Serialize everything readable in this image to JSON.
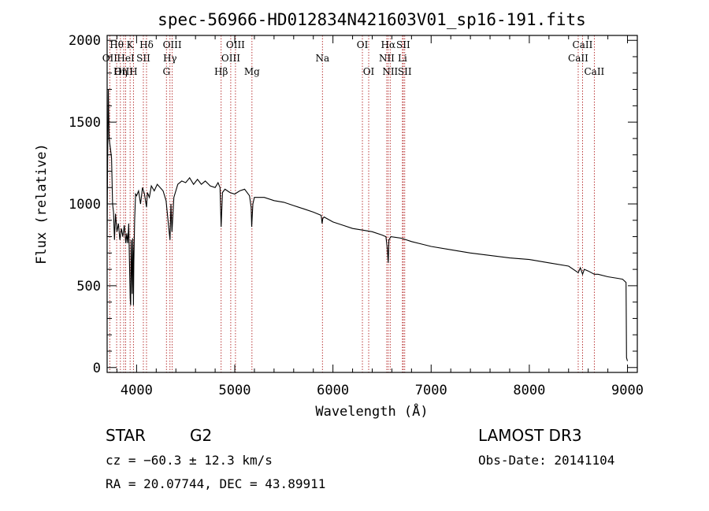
{
  "chart_data": {
    "type": "line",
    "title": "spec-56966-HD012834N421603V01_sp16-191.fits",
    "xlabel": "Wavelength (Å)",
    "ylabel": "Flux (relative)",
    "xlim": [
      3700,
      9100
    ],
    "ylim": [
      -30,
      2030
    ],
    "xticks": [
      4000,
      5000,
      6000,
      7000,
      8000,
      9000
    ],
    "yticks": [
      0,
      500,
      1000,
      1500,
      2000
    ],
    "grid": false,
    "series": [
      {
        "name": "flux",
        "x": [
          3700,
          3705,
          3712,
          3720,
          3735,
          3745,
          3755,
          3765,
          3775,
          3785,
          3800,
          3815,
          3830,
          3845,
          3860,
          3875,
          3890,
          3900,
          3910,
          3920,
          3930,
          3935,
          3940,
          3945,
          3950,
          3955,
          3960,
          3965,
          3968,
          3972,
          3980,
          3990,
          4000,
          4020,
          4040,
          4060,
          4080,
          4101,
          4110,
          4130,
          4150,
          4180,
          4210,
          4240,
          4270,
          4300,
          4320,
          4340,
          4350,
          4360,
          4380,
          4420,
          4460,
          4500,
          4540,
          4580,
          4620,
          4660,
          4700,
          4750,
          4800,
          4830,
          4850,
          4861,
          4875,
          4900,
          4950,
          5000,
          5050,
          5100,
          5150,
          5167,
          5172,
          5184,
          5200,
          5300,
          5400,
          5500,
          5600,
          5700,
          5800,
          5880,
          5890,
          5896,
          5910,
          6000,
          6100,
          6200,
          6300,
          6400,
          6500,
          6540,
          6555,
          6563,
          6570,
          6590,
          6700,
          6800,
          6900,
          7000,
          7200,
          7400,
          7600,
          7800,
          8000,
          8200,
          8400,
          8498,
          8520,
          8542,
          8560,
          8600,
          8662,
          8700,
          8800,
          8900,
          8950,
          8985,
          8990,
          9000
        ],
        "values": [
          800,
          1250,
          1700,
          1400,
          1330,
          1280,
          1000,
          950,
          780,
          940,
          830,
          880,
          780,
          850,
          800,
          870,
          760,
          820,
          760,
          880,
          560,
          420,
          380,
          780,
          600,
          450,
          790,
          700,
          380,
          640,
          900,
          1060,
          1050,
          1080,
          1000,
          1100,
          1060,
          980,
          1070,
          1040,
          1110,
          1080,
          1120,
          1100,
          1080,
          1020,
          900,
          780,
          1000,
          830,
          1040,
          1120,
          1140,
          1130,
          1160,
          1120,
          1150,
          1120,
          1140,
          1110,
          1100,
          1130,
          1100,
          860,
          1070,
          1090,
          1070,
          1060,
          1080,
          1090,
          1050,
          980,
          860,
          1000,
          1040,
          1040,
          1020,
          1010,
          990,
          970,
          950,
          930,
          880,
          910,
          920,
          890,
          870,
          850,
          840,
          830,
          810,
          800,
          720,
          640,
          780,
          800,
          790,
          770,
          755,
          740,
          720,
          700,
          685,
          670,
          660,
          640,
          620,
          580,
          610,
          570,
          600,
          590,
          570,
          570,
          555,
          545,
          540,
          520,
          60,
          40
        ]
      }
    ],
    "lines": [
      {
        "name": "OII",
        "wavelength": 3727,
        "tier": 1
      },
      {
        "name": "Hθ",
        "wavelength": 3797,
        "tier": 0
      },
      {
        "name": "OIII",
        "wavelength": 3869,
        "tier": 2
      },
      {
        "name": "HeI",
        "wavelength": 3889,
        "tier": 1
      },
      {
        "name": "K",
        "wavelength": 3934,
        "tier": 0
      },
      {
        "name": "Hη",
        "wavelength": 3835,
        "tier": 2
      },
      {
        "name": "H",
        "wavelength": 3968,
        "tier": 2
      },
      {
        "name": "SII",
        "wavelength": 4069,
        "tier": 1
      },
      {
        "name": "Hδ",
        "wavelength": 4101,
        "tier": 0
      },
      {
        "name": "G",
        "wavelength": 4304,
        "tier": 2
      },
      {
        "name": "Hγ",
        "wavelength": 4340,
        "tier": 1
      },
      {
        "name": "OIII",
        "wavelength": 4363,
        "tier": 0
      },
      {
        "name": "Hβ",
        "wavelength": 4861,
        "tier": 2
      },
      {
        "name": "OIII",
        "wavelength": 4959,
        "tier": 1
      },
      {
        "name": "OIII",
        "wavelength": 5007,
        "tier": 0
      },
      {
        "name": "Mg",
        "wavelength": 5175,
        "tier": 2
      },
      {
        "name": "Na",
        "wavelength": 5893,
        "tier": 1
      },
      {
        "name": "OI",
        "wavelength": 6300,
        "tier": 0
      },
      {
        "name": "OI",
        "wavelength": 6364,
        "tier": 2
      },
      {
        "name": "NII",
        "wavelength": 6548,
        "tier": 1
      },
      {
        "name": "Hα",
        "wavelength": 6563,
        "tier": 0
      },
      {
        "name": "NII",
        "wavelength": 6583,
        "tier": 2
      },
      {
        "name": "Li",
        "wavelength": 6708,
        "tier": 1
      },
      {
        "name": "SII",
        "wavelength": 6716,
        "tier": 0
      },
      {
        "name": "SII",
        "wavelength": 6731,
        "tier": 2
      },
      {
        "name": "CaII",
        "wavelength": 8498,
        "tier": 1
      },
      {
        "name": "CaII",
        "wavelength": 8542,
        "tier": 0
      },
      {
        "name": "CaII",
        "wavelength": 8662,
        "tier": 2
      }
    ]
  },
  "info": {
    "class": "STAR",
    "subclass": "G2",
    "survey": "LAMOST DR3",
    "cz": "cz = −60.3 ± 12.3 km/s",
    "obs_date": "Obs-Date: 20141104",
    "coords": "RA =  20.07744, DEC =  43.89911"
  },
  "colors": {
    "line_marker": "#b22222",
    "spectrum": "#000000"
  }
}
